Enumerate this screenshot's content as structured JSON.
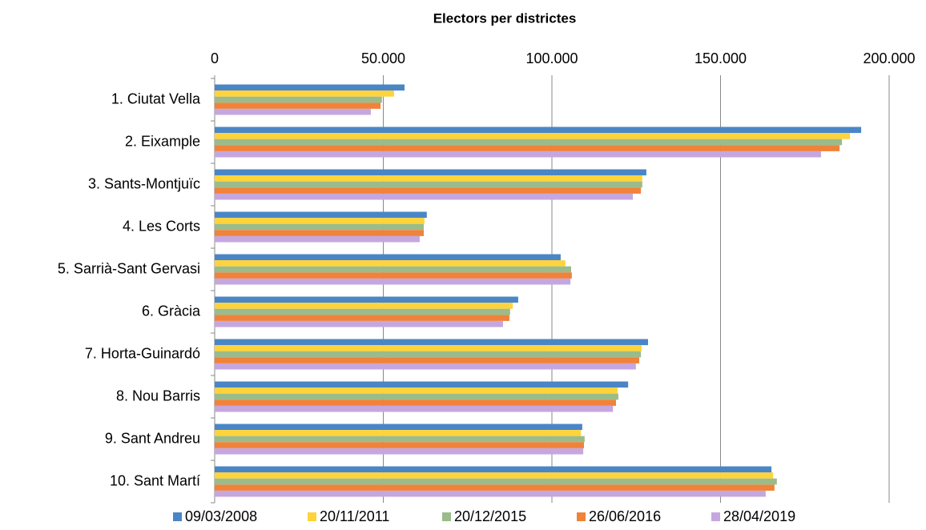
{
  "chart_data": {
    "type": "hbar",
    "title": "Electors per districtes",
    "categories": [
      "1. Ciutat Vella",
      "2. Eixample",
      "3. Sants-Montjuïc",
      "4. Les Corts",
      "5. Sarrià-Sant Gervasi",
      "6. Gràcia",
      "7. Horta-Guinardó",
      "8. Nou Barris",
      "9. Sant Andreu",
      "10. Sant Martí"
    ],
    "series": [
      {
        "name": "09/03/2008",
        "color": "#4a86c6",
        "values": [
          56300,
          191700,
          128000,
          62900,
          102600,
          90000,
          128500,
          122600,
          109000,
          165100
        ]
      },
      {
        "name": "20/11/2011",
        "color": "#ffd33a",
        "values": [
          53200,
          188400,
          126800,
          62200,
          104000,
          88400,
          126600,
          119500,
          108600,
          165600
        ]
      },
      {
        "name": "20/12/2015",
        "color": "#9bbb8b",
        "values": [
          49600,
          186000,
          126800,
          62000,
          105700,
          87600,
          126400,
          119700,
          109700,
          166700
        ]
      },
      {
        "name": "26/06/2016",
        "color": "#f0823a",
        "values": [
          49200,
          185300,
          126400,
          62000,
          105900,
          87400,
          125900,
          119000,
          109500,
          166000
        ]
      },
      {
        "name": "28/04/2019",
        "color": "#c5a7e0",
        "values": [
          46300,
          179800,
          124000,
          60800,
          105500,
          85500,
          124900,
          118100,
          109300,
          163400
        ]
      }
    ],
    "xlim": [
      0,
      200000
    ],
    "xticks": [
      0,
      {
        "value": 50000,
        "label": "50.000"
      },
      {
        "value": 100000,
        "label": "100.000"
      },
      {
        "value": 150000,
        "label": "150.000"
      },
      {
        "value": 200000,
        "label": "200.000"
      }
    ],
    "grid": true,
    "legend": "bottom"
  }
}
